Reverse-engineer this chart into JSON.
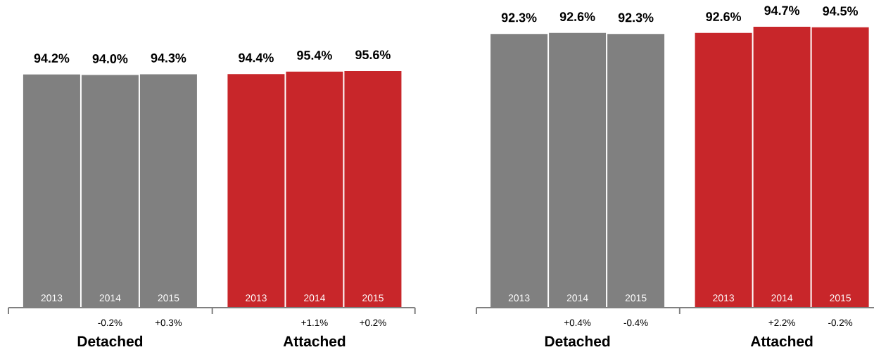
{
  "chart_data": [
    {
      "type": "bar",
      "categories": [
        "2013",
        "2014",
        "2015",
        "2013",
        "2014",
        "2015"
      ],
      "values": [
        94.2,
        94.0,
        94.3,
        94.4,
        95.4,
        95.6
      ],
      "colors": [
        "#808080",
        "#808080",
        "#808080",
        "#c8262a",
        "#c8262a",
        "#c8262a"
      ],
      "value_labels": [
        "94.2%",
        "94.0%",
        "94.3%",
        "94.4%",
        "95.4%",
        "95.6%"
      ],
      "annotations": [
        "-0.2%",
        "+0.3%",
        "+1.1%",
        "+0.2%",
        "Detached",
        "Attached"
      ]
    },
    {
      "type": "bar",
      "categories": [
        "2013",
        "2014",
        "2015",
        "2013",
        "2014",
        "2015"
      ],
      "values": [
        92.3,
        92.6,
        92.3,
        92.6,
        94.7,
        94.5
      ],
      "colors": [
        "#808080",
        "#808080",
        "#808080",
        "#c8262a",
        "#c8262a",
        "#c8262a"
      ],
      "value_labels": [
        "92.3%",
        "92.6%",
        "92.3%",
        "92.6%",
        "94.7%",
        "94.5%"
      ],
      "annotations": [
        "+0.4%",
        "-0.4%",
        "+2.2%",
        "-0.2%",
        "Detached",
        "Attached"
      ]
    }
  ]
}
